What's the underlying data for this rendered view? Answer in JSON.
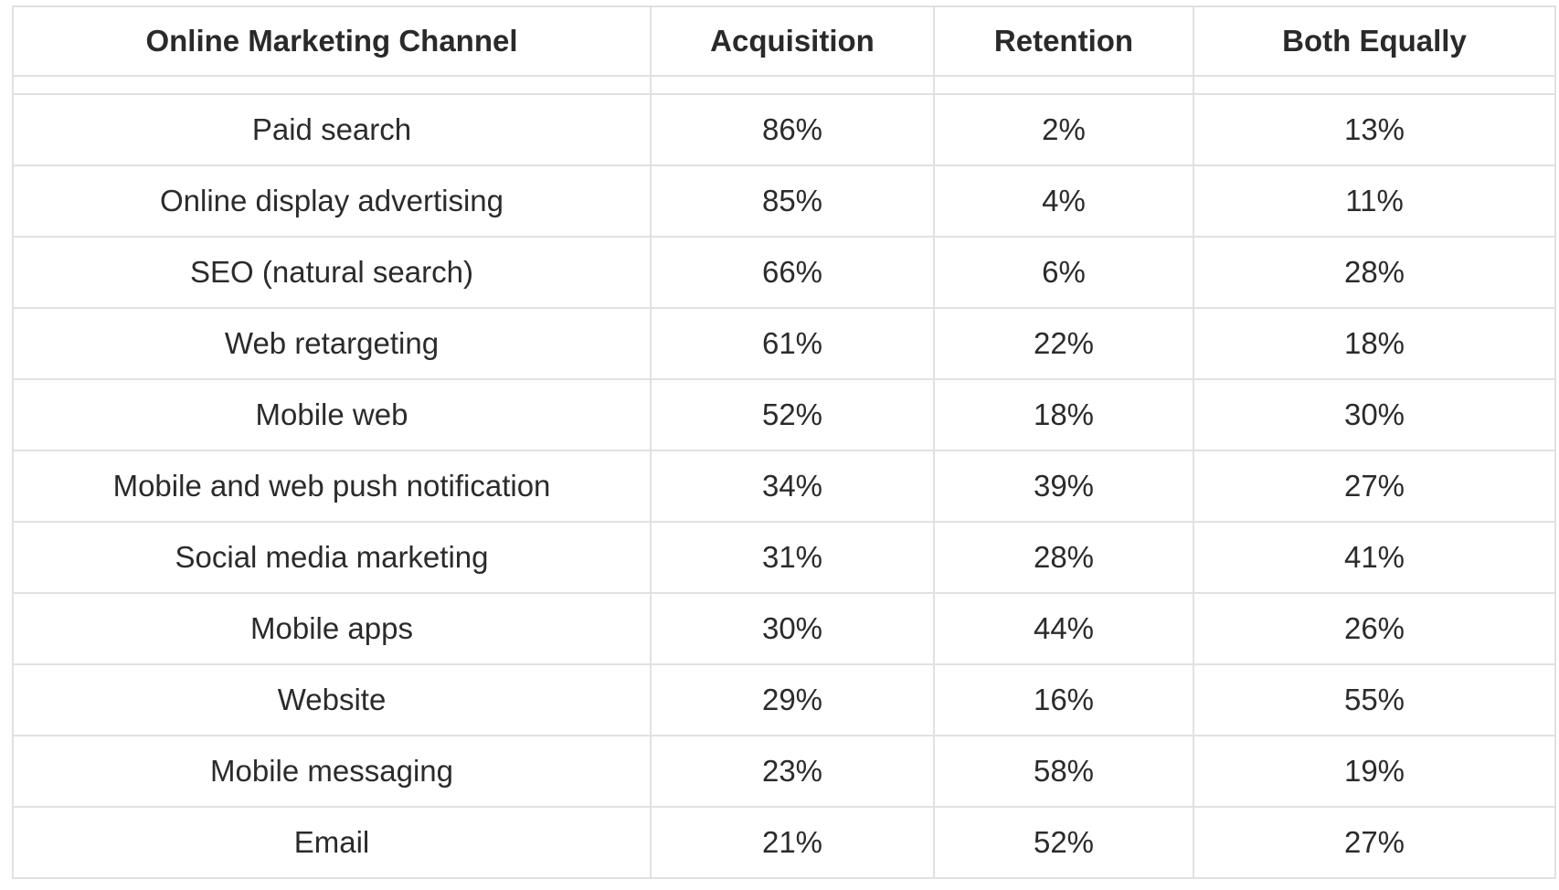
{
  "table": {
    "headers": [
      "Online Marketing Channel",
      "Acquisition",
      "Retention",
      "Both Equally"
    ],
    "rows": [
      [
        "Paid search",
        "86%",
        "2%",
        "13%"
      ],
      [
        "Online display advertising",
        "85%",
        "4%",
        "11%"
      ],
      [
        "SEO (natural search)",
        "66%",
        "6%",
        "28%"
      ],
      [
        "Web retargeting",
        "61%",
        "22%",
        "18%"
      ],
      [
        "Mobile web",
        "52%",
        "18%",
        "30%"
      ],
      [
        "Mobile and web push notification",
        "34%",
        "39%",
        "27%"
      ],
      [
        "Social media marketing",
        "31%",
        "28%",
        "41%"
      ],
      [
        "Mobile apps",
        "30%",
        "44%",
        "26%"
      ],
      [
        "Website",
        "29%",
        "16%",
        "55%"
      ],
      [
        "Mobile messaging",
        "23%",
        "58%",
        "19%"
      ],
      [
        "Email",
        "21%",
        "52%",
        "27%"
      ]
    ]
  }
}
